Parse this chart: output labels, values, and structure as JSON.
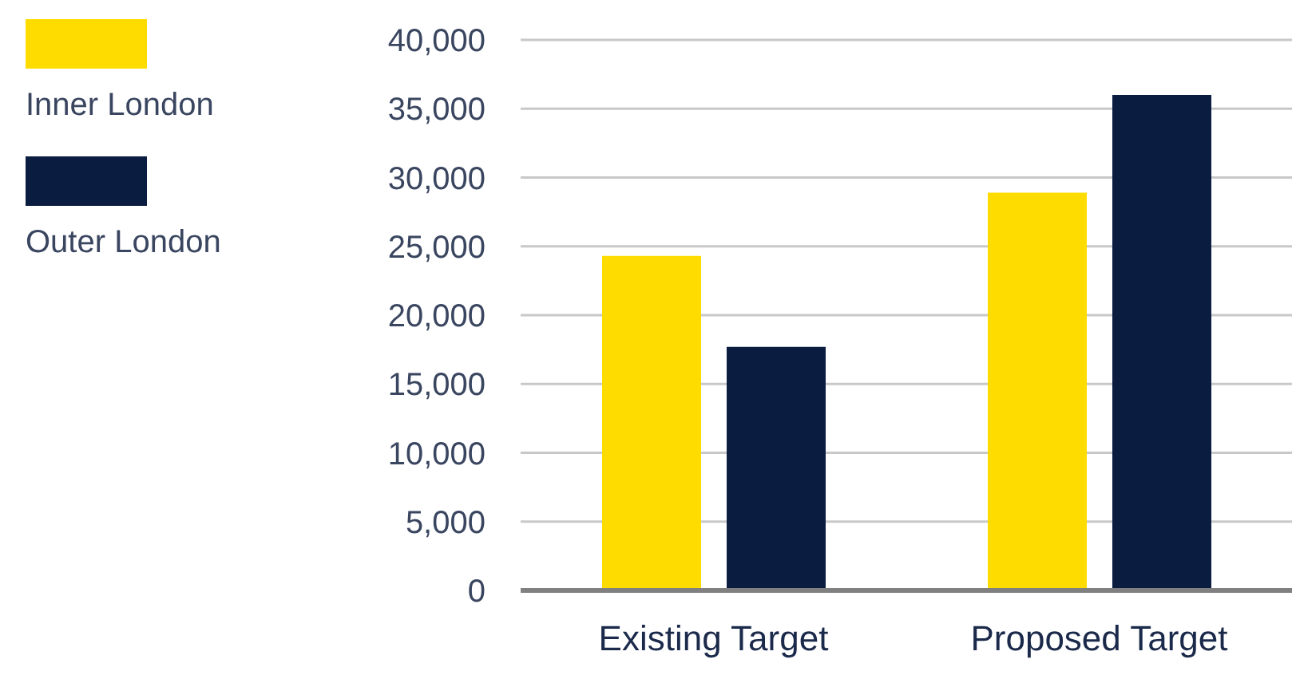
{
  "chart_data": {
    "type": "bar",
    "categories": [
      "Existing Target",
      "Proposed Target"
    ],
    "series": [
      {
        "name": "Inner London",
        "color": "#ffdc00",
        "values": [
          24300,
          28900
        ]
      },
      {
        "name": "Outer London",
        "color": "#0a1c40",
        "values": [
          17700,
          36000
        ]
      }
    ],
    "ylim": [
      0,
      40000
    ],
    "yticks": [
      {
        "value": 0,
        "label": "0"
      },
      {
        "value": 5000,
        "label": "5,000"
      },
      {
        "value": 10000,
        "label": "10,000"
      },
      {
        "value": 15000,
        "label": "15,000"
      },
      {
        "value": 20000,
        "label": "20,000"
      },
      {
        "value": 25000,
        "label": "25,000"
      },
      {
        "value": 30000,
        "label": "30,000"
      },
      {
        "value": 35000,
        "label": "35,000"
      },
      {
        "value": 40000,
        "label": "40,000"
      }
    ],
    "grid": "y",
    "legend": "left"
  }
}
